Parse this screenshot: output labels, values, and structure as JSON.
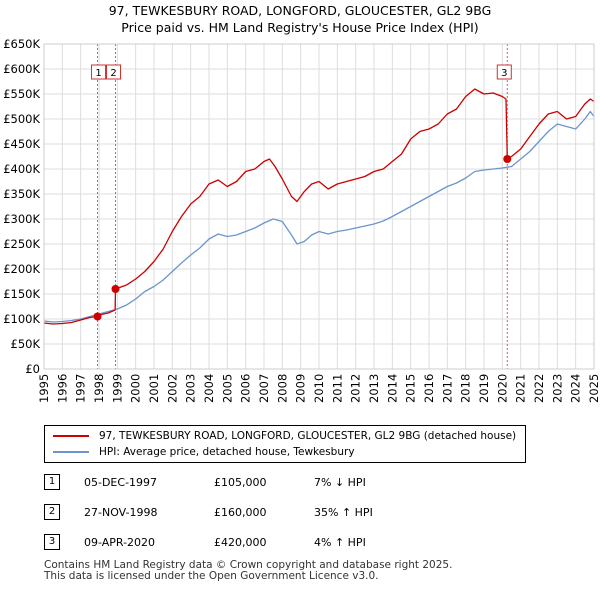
{
  "title_line1": "97, TEWKESBURY ROAD, LONGFORD, GLOUCESTER, GL2 9BG",
  "title_line2": "Price paid vs. HM Land Registry's House Price Index (HPI)",
  "colors": {
    "property": "#cc0000",
    "hpi": "#6a96cf",
    "grid": "#dddddd",
    "marker_line": "#d45a6a"
  },
  "chart_data": {
    "type": "line",
    "title": "Price paid vs. HM Land Registry's House Price Index (HPI)",
    "xlabel": "",
    "ylabel": "",
    "xlim": [
      1995,
      2025
    ],
    "ylim": [
      0,
      650000
    ],
    "y_ticks": [
      0,
      50000,
      100000,
      150000,
      200000,
      250000,
      300000,
      350000,
      400000,
      450000,
      500000,
      550000,
      600000,
      650000
    ],
    "y_tick_labels": [
      "£0",
      "£50K",
      "£100K",
      "£150K",
      "£200K",
      "£250K",
      "£300K",
      "£350K",
      "£400K",
      "£450K",
      "£500K",
      "£550K",
      "£600K",
      "£650K"
    ],
    "x_ticks": [
      1995,
      1996,
      1997,
      1998,
      1999,
      2000,
      2001,
      2002,
      2003,
      2004,
      2005,
      2006,
      2007,
      2008,
      2009,
      2010,
      2011,
      2012,
      2013,
      2014,
      2015,
      2016,
      2017,
      2018,
      2019,
      2020,
      2021,
      2022,
      2023,
      2024,
      2025
    ],
    "grid": true,
    "series": [
      {
        "name": "97, TEWKESBURY ROAD, LONGFORD, GLOUCESTER, GL2 9BG (detached house)",
        "color": "#cc0000",
        "x": [
          1995,
          1995.5,
          1996,
          1996.5,
          1997,
          1997.5,
          1997.92,
          1998,
          1998.5,
          1998.88,
          1998.9,
          1999.5,
          2000,
          2000.5,
          2001,
          2001.5,
          2002,
          2002.5,
          2003,
          2003.5,
          2004,
          2004.5,
          2005,
          2005.5,
          2006,
          2006.5,
          2007,
          2007.3,
          2007.6,
          2008,
          2008.5,
          2008.8,
          2009.2,
          2009.6,
          2010,
          2010.5,
          2011,
          2011.5,
          2012,
          2012.5,
          2013,
          2013.5,
          2014,
          2014.5,
          2015,
          2015.5,
          2016,
          2016.5,
          2017,
          2017.5,
          2018,
          2018.5,
          2019,
          2019.5,
          2020,
          2020.2,
          2020.27,
          2020.5,
          2021,
          2021.5,
          2022,
          2022.5,
          2023,
          2023.5,
          2024,
          2024.5,
          2024.8,
          2025
        ],
        "values": [
          92000,
          90000,
          91000,
          93000,
          98000,
          103000,
          105000,
          108000,
          112000,
          118000,
          160000,
          168000,
          180000,
          195000,
          215000,
          240000,
          275000,
          305000,
          330000,
          345000,
          370000,
          378000,
          365000,
          375000,
          395000,
          400000,
          415000,
          420000,
          405000,
          380000,
          345000,
          335000,
          355000,
          370000,
          375000,
          360000,
          370000,
          375000,
          380000,
          385000,
          395000,
          400000,
          415000,
          430000,
          460000,
          475000,
          480000,
          490000,
          510000,
          520000,
          545000,
          560000,
          550000,
          552000,
          545000,
          540000,
          420000,
          425000,
          440000,
          465000,
          490000,
          510000,
          515000,
          500000,
          505000,
          530000,
          540000,
          535000
        ]
      },
      {
        "name": "HPI: Average price, detached house, Tewkesbury",
        "color": "#6a96cf",
        "x": [
          1995,
          1995.5,
          1996,
          1996.5,
          1997,
          1997.5,
          1998,
          1998.5,
          1999,
          1999.5,
          2000,
          2000.5,
          2001,
          2001.5,
          2002,
          2002.5,
          2003,
          2003.5,
          2004,
          2004.5,
          2005,
          2005.5,
          2006,
          2006.5,
          2007,
          2007.5,
          2008,
          2008.5,
          2008.8,
          2009.2,
          2009.6,
          2010,
          2010.5,
          2011,
          2011.5,
          2012,
          2012.5,
          2013,
          2013.5,
          2014,
          2014.5,
          2015,
          2015.5,
          2016,
          2016.5,
          2017,
          2017.5,
          2018,
          2018.5,
          2019,
          2019.5,
          2020,
          2020.5,
          2021,
          2021.5,
          2022,
          2022.5,
          2023,
          2023.5,
          2024,
          2024.5,
          2024.8,
          2025
        ],
        "values": [
          96000,
          94000,
          95000,
          97000,
          100000,
          105000,
          110000,
          115000,
          120000,
          128000,
          140000,
          155000,
          165000,
          178000,
          195000,
          212000,
          228000,
          242000,
          260000,
          270000,
          265000,
          268000,
          275000,
          282000,
          292000,
          300000,
          295000,
          268000,
          250000,
          255000,
          268000,
          275000,
          270000,
          275000,
          278000,
          282000,
          286000,
          290000,
          296000,
          305000,
          315000,
          325000,
          335000,
          345000,
          355000,
          365000,
          372000,
          382000,
          395000,
          398000,
          400000,
          402000,
          405000,
          420000,
          435000,
          455000,
          475000,
          490000,
          485000,
          480000,
          500000,
          515000,
          505000
        ]
      }
    ],
    "sale_markers": [
      {
        "label": "1",
        "x": 1997.92,
        "value": 105000
      },
      {
        "label": "2",
        "x": 1998.9,
        "value": 160000
      },
      {
        "label": "3",
        "x": 2020.27,
        "value": 420000
      }
    ]
  },
  "legend": {
    "property_label": "97, TEWKESBURY ROAD, LONGFORD, GLOUCESTER, GL2 9BG (detached house)",
    "hpi_label": "HPI: Average price, detached house, Tewkesbury"
  },
  "sales": [
    {
      "num": "1",
      "date": "05-DEC-1997",
      "price": "£105,000",
      "hpi": "7% ↓ HPI"
    },
    {
      "num": "2",
      "date": "27-NOV-1998",
      "price": "£160,000",
      "hpi": "35% ↑ HPI"
    },
    {
      "num": "3",
      "date": "09-APR-2020",
      "price": "£420,000",
      "hpi": "4% ↑ HPI"
    }
  ],
  "footer_line1": "Contains HM Land Registry data © Crown copyright and database right 2025.",
  "footer_line2": "This data is licensed under the Open Government Licence v3.0."
}
